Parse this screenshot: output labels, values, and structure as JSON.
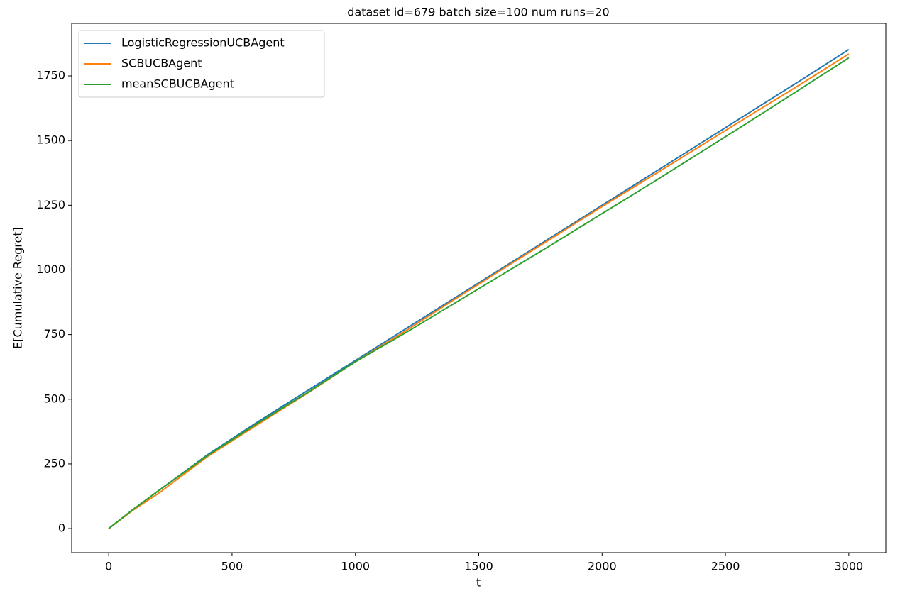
{
  "chart_data": {
    "type": "line",
    "title": "dataset id=679 batch size=100 num runs=20",
    "x_label": "t",
    "y_label": "E[Cumulative Regret]",
    "x": [
      0,
      100,
      200,
      400,
      600,
      800,
      1000,
      1200,
      1400,
      1600,
      1800,
      2000,
      2200,
      2400,
      2600,
      2800,
      3000
    ],
    "series": [
      {
        "name": "LogisticRegressionUCBAgent",
        "color": "#1f77b4",
        "values": [
          0,
          75,
          145,
          285,
          410,
          530,
          650,
          770,
          890,
          1010,
          1130,
          1250,
          1370,
          1490,
          1610,
          1730,
          1852
        ]
      },
      {
        "name": "SCBUCBAgent",
        "color": "#ff7f0e",
        "values": [
          0,
          72,
          135,
          278,
          400,
          520,
          645,
          762,
          885,
          1005,
          1125,
          1245,
          1362,
          1480,
          1598,
          1715,
          1835
        ]
      },
      {
        "name": "meanSCBUCBAgent",
        "color": "#2ca02c",
        "values": [
          0,
          75,
          145,
          282,
          405,
          522,
          645,
          755,
          870,
          985,
          1100,
          1218,
          1335,
          1455,
          1575,
          1697,
          1820
        ]
      }
    ],
    "xlim": [
      -150,
      3150
    ],
    "xticks": [
      0,
      500,
      1000,
      1500,
      2000,
      2500,
      3000
    ],
    "ylim": [
      -93,
      1953
    ],
    "yticks": [
      0,
      250,
      500,
      750,
      1000,
      1250,
      1500,
      1750
    ],
    "legend": "upper left"
  }
}
